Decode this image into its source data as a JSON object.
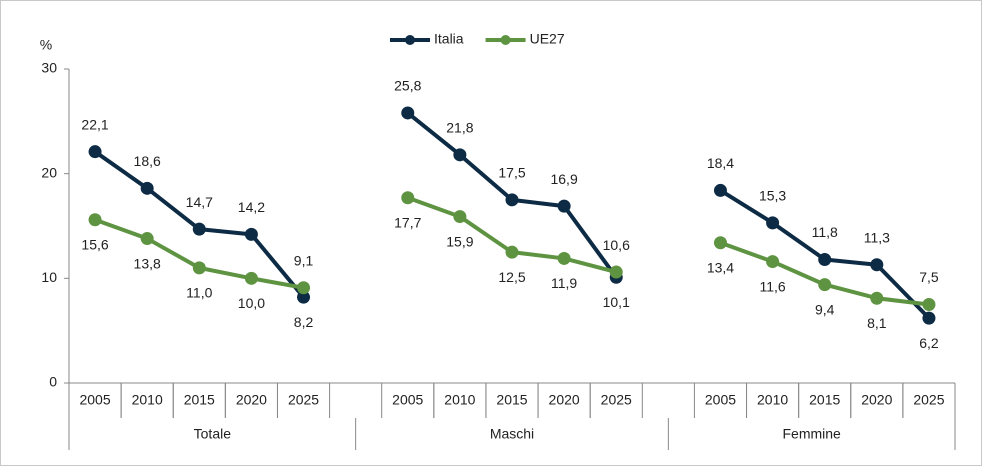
{
  "chart_data": {
    "type": "line",
    "y_label": "%",
    "groups": [
      "Totale",
      "Maschi",
      "Femmine"
    ],
    "categories": [
      "2005",
      "2010",
      "2015",
      "2020",
      "2025",
      null,
      "2005",
      "2010",
      "2015",
      "2020",
      "2025",
      null,
      "2005",
      "2010",
      "2015",
      "2020",
      "2025"
    ],
    "series": [
      {
        "name": "Italia",
        "color": "#0d2b45",
        "values": [
          22.1,
          18.6,
          14.7,
          14.2,
          8.2,
          null,
          25.8,
          21.8,
          17.5,
          16.9,
          10.1,
          null,
          18.4,
          15.3,
          11.8,
          11.3,
          6.2
        ],
        "value_labels": [
          "22,1",
          "18,6",
          "14,7",
          "14,2",
          "8,2",
          null,
          "25,8",
          "21,8",
          "17,5",
          "16,9",
          "10,1",
          null,
          "18,4",
          "15,3",
          "11,8",
          "11,3",
          "6,2"
        ]
      },
      {
        "name": "UE27",
        "color": "#5e9441",
        "values": [
          15.6,
          13.8,
          11.0,
          10.0,
          9.1,
          null,
          17.7,
          15.9,
          12.5,
          11.9,
          10.6,
          null,
          13.4,
          11.6,
          9.4,
          8.1,
          7.5
        ],
        "value_labels": [
          "15,6",
          "13,8",
          "11,0",
          "10,0",
          "9,1",
          null,
          "17,7",
          "15,9",
          "12,5",
          "11,9",
          "10,6",
          null,
          "13,4",
          "11,6",
          "9,4",
          "8,1",
          "7,5"
        ]
      }
    ],
    "ylim": [
      0,
      30
    ],
    "yticks": [
      0,
      10,
      20,
      30
    ],
    "grid": false,
    "legend": "top"
  }
}
